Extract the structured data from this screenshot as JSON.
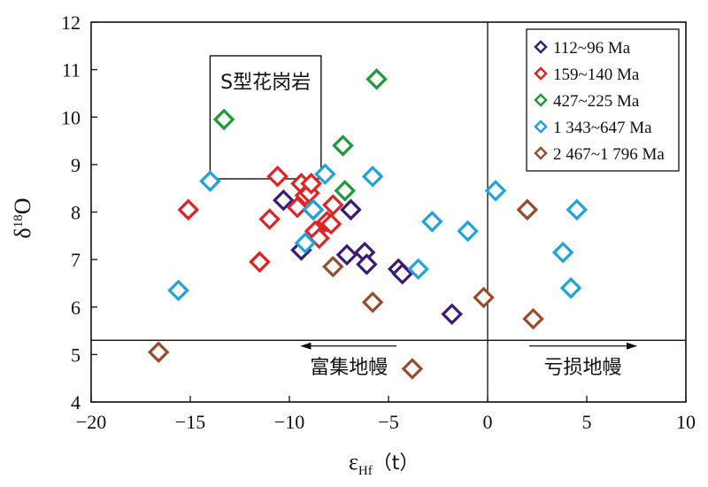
{
  "chart_data": {
    "type": "scatter",
    "title": "",
    "xlabel": "ε",
    "xlabel_sub": "Hf",
    "xlabel_suffix": "（t）",
    "ylabel": "δ",
    "ylabel_sup": "18",
    "ylabel_suffix": "O",
    "xlim": [
      -20,
      10
    ],
    "ylim": [
      4,
      12
    ],
    "xticks": [
      -20,
      -15,
      -10,
      -5,
      0,
      5,
      10
    ],
    "xtick_labels": [
      "−20",
      "−15",
      "−10",
      "−5",
      "0",
      "5",
      "10"
    ],
    "yticks": [
      4,
      5,
      6,
      7,
      8,
      9,
      10,
      11,
      12
    ],
    "ytick_labels": [
      "4",
      "5",
      "6",
      "7",
      "8",
      "9",
      "10",
      "11",
      "12"
    ],
    "grid": false,
    "legend_position": "top-right",
    "marker": "diamond-open",
    "reference_lines": {
      "vertical_x": 0,
      "horizontal_y": 5.3
    },
    "s_granite_box": {
      "x": [
        -14,
        -8.4
      ],
      "y": [
        8.7,
        12.3
      ],
      "label": "S型花岗岩"
    },
    "annotations": [
      {
        "text": "富集地幔",
        "arrow": "left",
        "x_from": -4.6,
        "x_to": -9.4,
        "y": 4.75
      },
      {
        "text": "亏损地幔",
        "arrow": "right",
        "x_from": 2.1,
        "x_to": 7.5,
        "y": 4.75
      }
    ],
    "series": [
      {
        "name": "112~96 Ma",
        "color": "#3b1a78",
        "points": [
          [
            -10.3,
            8.25
          ],
          [
            -9.4,
            7.2
          ],
          [
            -8.8,
            8.05
          ],
          [
            -7.1,
            7.1
          ],
          [
            -6.9,
            8.05
          ],
          [
            -6.2,
            7.15
          ],
          [
            -6.1,
            6.9
          ],
          [
            -4.5,
            6.8
          ],
          [
            -4.3,
            6.7
          ],
          [
            -1.8,
            5.85
          ]
        ]
      },
      {
        "name": "159~140 Ma",
        "color": "#e02323",
        "points": [
          [
            -15.1,
            8.05
          ],
          [
            -11.5,
            6.95
          ],
          [
            -11.0,
            7.85
          ],
          [
            -10.6,
            8.75
          ],
          [
            -9.6,
            8.1
          ],
          [
            -9.4,
            8.6
          ],
          [
            -9.2,
            8.35
          ],
          [
            -9.0,
            8.4
          ],
          [
            -8.9,
            8.6
          ],
          [
            -8.7,
            7.6
          ],
          [
            -8.5,
            7.45
          ],
          [
            -8.1,
            7.8
          ],
          [
            -7.9,
            7.75
          ],
          [
            -7.8,
            8.15
          ]
        ]
      },
      {
        "name": "427~225 Ma",
        "color": "#1f9a38",
        "points": [
          [
            -13.3,
            9.95
          ],
          [
            -7.3,
            9.4
          ],
          [
            -7.2,
            8.45
          ],
          [
            -5.6,
            10.8
          ]
        ]
      },
      {
        "name": "1 343~647 Ma",
        "color": "#1ea3dc",
        "points": [
          [
            -15.6,
            6.35
          ],
          [
            -14.0,
            8.65
          ],
          [
            -9.2,
            7.35
          ],
          [
            -8.8,
            8.05
          ],
          [
            -8.2,
            8.8
          ],
          [
            -5.8,
            8.75
          ],
          [
            -3.5,
            6.8
          ],
          [
            -2.8,
            7.8
          ],
          [
            -1.0,
            7.6
          ],
          [
            0.4,
            8.45
          ],
          [
            3.8,
            7.15
          ],
          [
            4.2,
            6.4
          ],
          [
            4.5,
            8.05
          ]
        ]
      },
      {
        "name": "2 467~1 796 Ma",
        "color": "#9a4c2e",
        "points": [
          [
            -16.6,
            5.05
          ],
          [
            -7.8,
            6.85
          ],
          [
            -5.8,
            6.1
          ],
          [
            -3.8,
            4.7
          ],
          [
            -0.2,
            6.2
          ],
          [
            2.0,
            8.05
          ],
          [
            2.3,
            5.75
          ]
        ]
      }
    ]
  }
}
